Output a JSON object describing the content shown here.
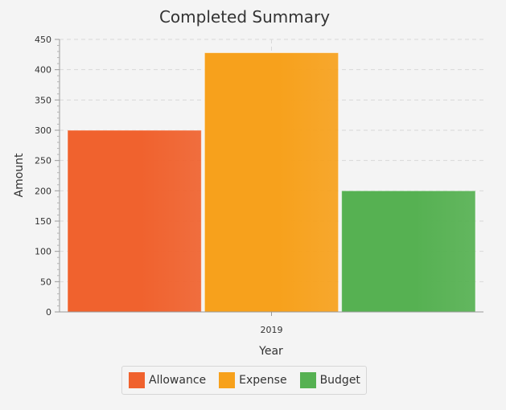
{
  "chart_data": {
    "type": "bar",
    "title": "Completed Summary",
    "xlabel": "Year",
    "ylabel": "Amount",
    "categories": [
      "2019"
    ],
    "series": [
      {
        "name": "Allowance",
        "values": [
          300
        ],
        "color": "#f0622e"
      },
      {
        "name": "Expense",
        "values": [
          428
        ],
        "color": "#f7a11c"
      },
      {
        "name": "Budget",
        "values": [
          200
        ],
        "color": "#56b152"
      }
    ],
    "ylim": [
      0,
      450
    ],
    "yticks": [
      0,
      50,
      100,
      150,
      200,
      250,
      300,
      350,
      400,
      450
    ],
    "grid": true,
    "legend_position": "bottom"
  }
}
